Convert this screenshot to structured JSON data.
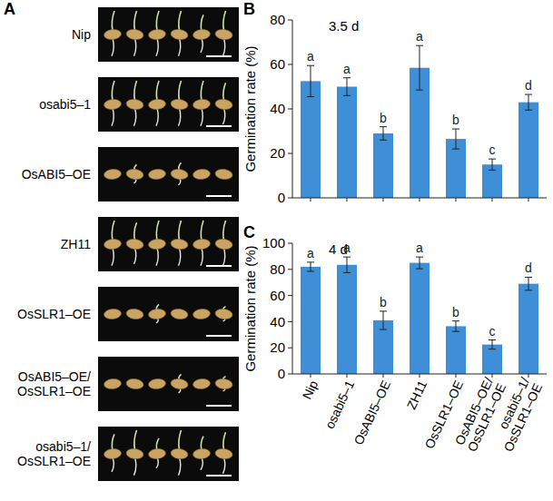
{
  "panel_a": {
    "letter": "A",
    "rows": [
      "Nip",
      "osabi5–1",
      "OsABI5–OE",
      "ZH11",
      "OsSLR1–OE",
      "OsABI5–OE/ OsSLR1–OE",
      "osabi5–1/ OsSLR1–OE"
    ]
  },
  "chart_data": [
    {
      "type": "bar",
      "panel": "B",
      "annotation": "3.5 d",
      "y_label": "Germination rate (%)",
      "categories": [
        "Nip",
        "osabi5–1",
        "OsABI5–OE",
        "ZH11",
        "OsSLR1–OE",
        "OsABI5–OE/ OsSLR1–OE",
        "osabi5–1/ OsSLR1–OE"
      ],
      "values": [
        52.5,
        50,
        29,
        58.5,
        26.5,
        15,
        43
      ],
      "errors": [
        7,
        4,
        3,
        10,
        4.5,
        2.5,
        3.5
      ],
      "letters": [
        "a",
        "a",
        "b",
        "a",
        "b",
        "c",
        "d"
      ],
      "color": "#3f8fd6",
      "ylim": [
        0,
        80
      ],
      "yticks": [
        0,
        20,
        40,
        60,
        80
      ],
      "tick_labels": "y"
    },
    {
      "type": "bar",
      "panel": "C",
      "annotation": "4 d",
      "y_label": "Germination rate (%)",
      "categories": [
        "Nip",
        "osabi5–1",
        "OsABI5–OE",
        "ZH11",
        "OsSLR1–OE",
        "OsABI5–OE/ OsSLR1–OE",
        "osabi5–1/ OsSLR1–OE"
      ],
      "values": [
        82,
        83.5,
        41,
        85,
        36.5,
        22.5,
        69
      ],
      "errors": [
        3.5,
        6,
        7,
        4.5,
        4,
        3.5,
        5
      ],
      "letters": [
        "a",
        "a",
        "b",
        "a",
        "b",
        "c",
        "d"
      ],
      "color": "#3f8fd6",
      "ylim": [
        0,
        100
      ],
      "yticks": [
        0,
        20,
        40,
        60,
        80,
        100
      ]
    }
  ]
}
